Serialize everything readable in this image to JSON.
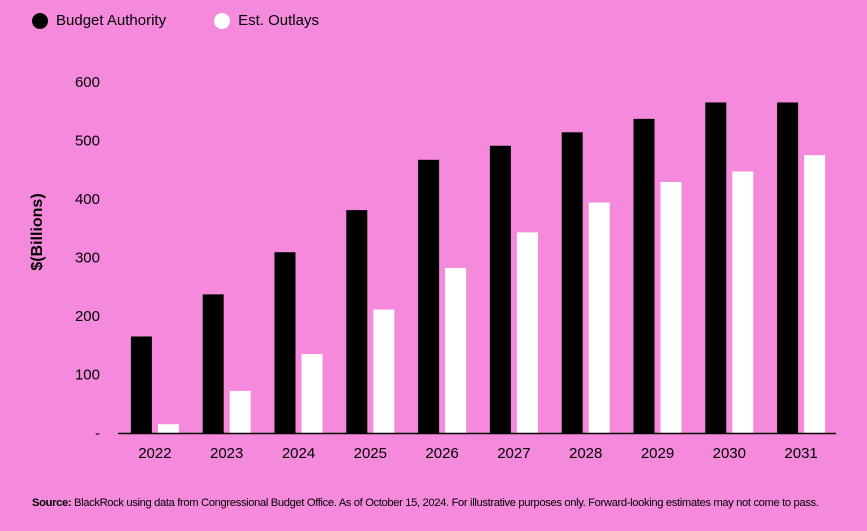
{
  "chart_data": {
    "type": "bar",
    "title": "",
    "xlabel": "",
    "ylabel": "$(Billions)",
    "categories": [
      "2022",
      "2023",
      "2024",
      "2025",
      "2026",
      "2027",
      "2028",
      "2029",
      "2030",
      "2031"
    ],
    "series": [
      {
        "name": "Budget Authority",
        "color": "#000000",
        "values": [
          165,
          237,
          309,
          381,
          467,
          491,
          514,
          537,
          565,
          565
        ]
      },
      {
        "name": "Est. Outlays",
        "color": "#ffffff",
        "values": [
          15,
          72,
          135,
          211,
          282,
          343,
          394,
          429,
          447,
          475
        ]
      }
    ],
    "ylim": [
      0,
      600
    ],
    "yticks": [
      0,
      100,
      200,
      300,
      400,
      500,
      600
    ],
    "ytick_labels": [
      "-",
      "100",
      "200",
      "300",
      "400",
      "500",
      "600"
    ],
    "grid": false,
    "legend_position": "top-left"
  },
  "legend": {
    "items": [
      {
        "label": "Budget Authority",
        "color": "#000000"
      },
      {
        "label": "Est. Outlays",
        "color": "#ffffff"
      }
    ]
  },
  "source": {
    "label": "Source:",
    "text": " BlackRock using data from Congressional Budget Office. As of October 15, 2024. For illustrative purposes only. Forward-looking estimates may not come to pass."
  },
  "colors": {
    "background": "#f589dc",
    "axis": "#000000"
  }
}
